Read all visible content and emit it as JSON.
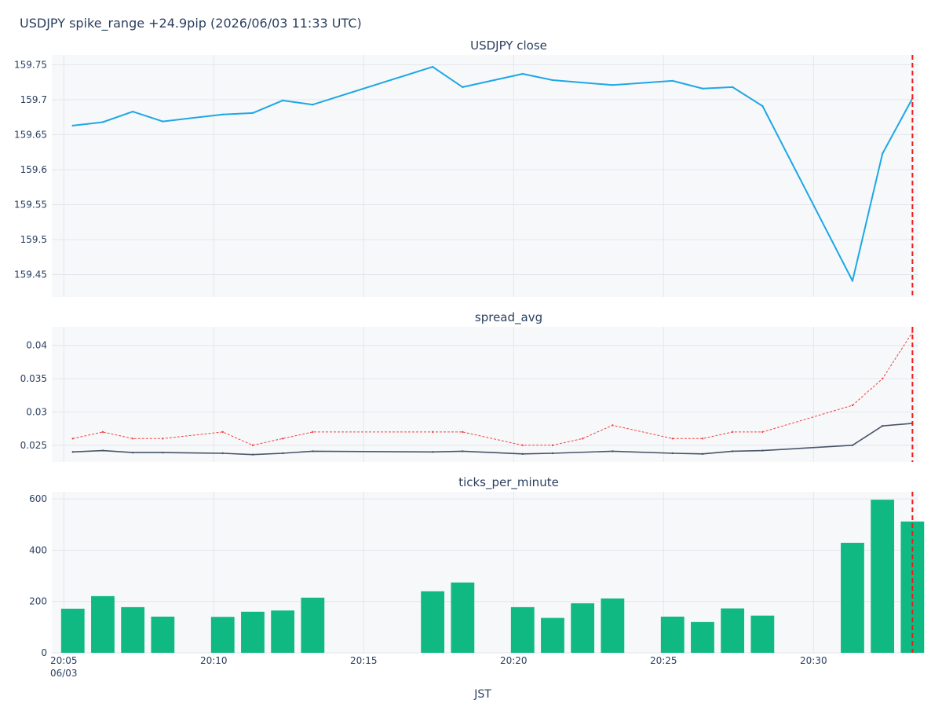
{
  "title": "USDJPY spike_range +24.9pip (2026/06/03 11:33 UTC)",
  "xlabel": "JST",
  "colors": {
    "close": "#1ea7e6",
    "spread_avg": "#475569",
    "spread_max": "#ef4444",
    "ticks": "#10b981",
    "event_line": "#ef1c1c",
    "plot_bg": "#f7f8fa",
    "grid": "#e3e6ec"
  },
  "x_ticks": [
    {
      "t": 0,
      "label": "20:05",
      "sub": "06/03"
    },
    {
      "t": 5,
      "label": "20:10",
      "sub": ""
    },
    {
      "t": 10,
      "label": "20:15",
      "sub": ""
    },
    {
      "t": 15,
      "label": "20:20",
      "sub": ""
    },
    {
      "t": 20,
      "label": "20:25",
      "sub": ""
    },
    {
      "t": 25,
      "label": "20:30",
      "sub": ""
    }
  ],
  "x_range": [
    -0.4,
    28.5
  ],
  "event_t": 28.3,
  "chart_data": [
    {
      "type": "line",
      "title": "USDJPY close",
      "ylim": [
        159.418,
        159.764
      ],
      "yticks": [
        159.45,
        159.5,
        159.55,
        159.6,
        159.65,
        159.7,
        159.75
      ],
      "ytick_labels": [
        "159.45",
        "159.5",
        "159.55",
        "159.6",
        "159.65",
        "159.7",
        "159.75"
      ],
      "series": [
        {
          "key": "close",
          "x": [
            0.3,
            1.3,
            2.3,
            3.3,
            5.3,
            6.3,
            7.3,
            8.3,
            12.3,
            13.3,
            15.3,
            16.3,
            18.3,
            20.3,
            21.3,
            22.3,
            23.3,
            26.3,
            27.3,
            28.3
          ],
          "y": [
            159.663,
            159.668,
            159.683,
            159.669,
            159.679,
            159.681,
            159.699,
            159.693,
            159.747,
            159.718,
            159.737,
            159.728,
            159.721,
            159.727,
            159.716,
            159.718,
            159.691,
            159.441,
            159.623,
            159.702
          ]
        }
      ]
    },
    {
      "type": "line",
      "title": "spread_avg",
      "ylim": [
        0.0225,
        0.0428
      ],
      "yticks": [
        0.025,
        0.03,
        0.035,
        0.04
      ],
      "ytick_labels": [
        "0.025",
        "0.03",
        "0.035",
        "0.04"
      ],
      "series": [
        {
          "key": "spread_max",
          "dash": true,
          "x": [
            0.3,
            1.3,
            2.3,
            3.3,
            5.3,
            6.3,
            7.3,
            8.3,
            12.3,
            13.3,
            15.3,
            16.3,
            17.3,
            18.3,
            20.3,
            21.3,
            22.3,
            23.3,
            26.3,
            27.3,
            28.3
          ],
          "y": [
            0.026,
            0.027,
            0.026,
            0.026,
            0.027,
            0.025,
            0.026,
            0.027,
            0.027,
            0.027,
            0.025,
            0.025,
            0.026,
            0.028,
            0.026,
            0.026,
            0.027,
            0.027,
            0.031,
            0.035,
            0.042
          ]
        },
        {
          "key": "spread_avg",
          "dash": false,
          "x": [
            0.3,
            1.3,
            2.3,
            3.3,
            5.3,
            6.3,
            7.3,
            8.3,
            12.3,
            13.3,
            15.3,
            16.3,
            18.3,
            20.3,
            21.3,
            22.3,
            23.3,
            26.3,
            27.3,
            28.3
          ],
          "y": [
            0.024,
            0.0242,
            0.0239,
            0.0239,
            0.0238,
            0.0236,
            0.0238,
            0.0241,
            0.024,
            0.0241,
            0.0237,
            0.0238,
            0.0241,
            0.0238,
            0.0237,
            0.0241,
            0.0242,
            0.025,
            0.0279,
            0.0283
          ]
        }
      ]
    },
    {
      "type": "bar",
      "title": "ticks_per_minute",
      "ylim": [
        0,
        628
      ],
      "yticks": [
        0,
        200,
        400,
        600
      ],
      "ytick_labels": [
        "0",
        "200",
        "400",
        "600"
      ],
      "x": [
        0.3,
        1.3,
        2.3,
        3.3,
        5.3,
        6.3,
        7.3,
        8.3,
        12.3,
        13.3,
        15.3,
        16.3,
        17.3,
        18.3,
        20.3,
        21.3,
        22.3,
        23.3,
        26.3,
        27.3,
        28.3
      ],
      "values": [
        172,
        221,
        178,
        141,
        140,
        160,
        165,
        215,
        240,
        274,
        178,
        136,
        193,
        212,
        141,
        120,
        173,
        145,
        429,
        597,
        512
      ]
    }
  ]
}
